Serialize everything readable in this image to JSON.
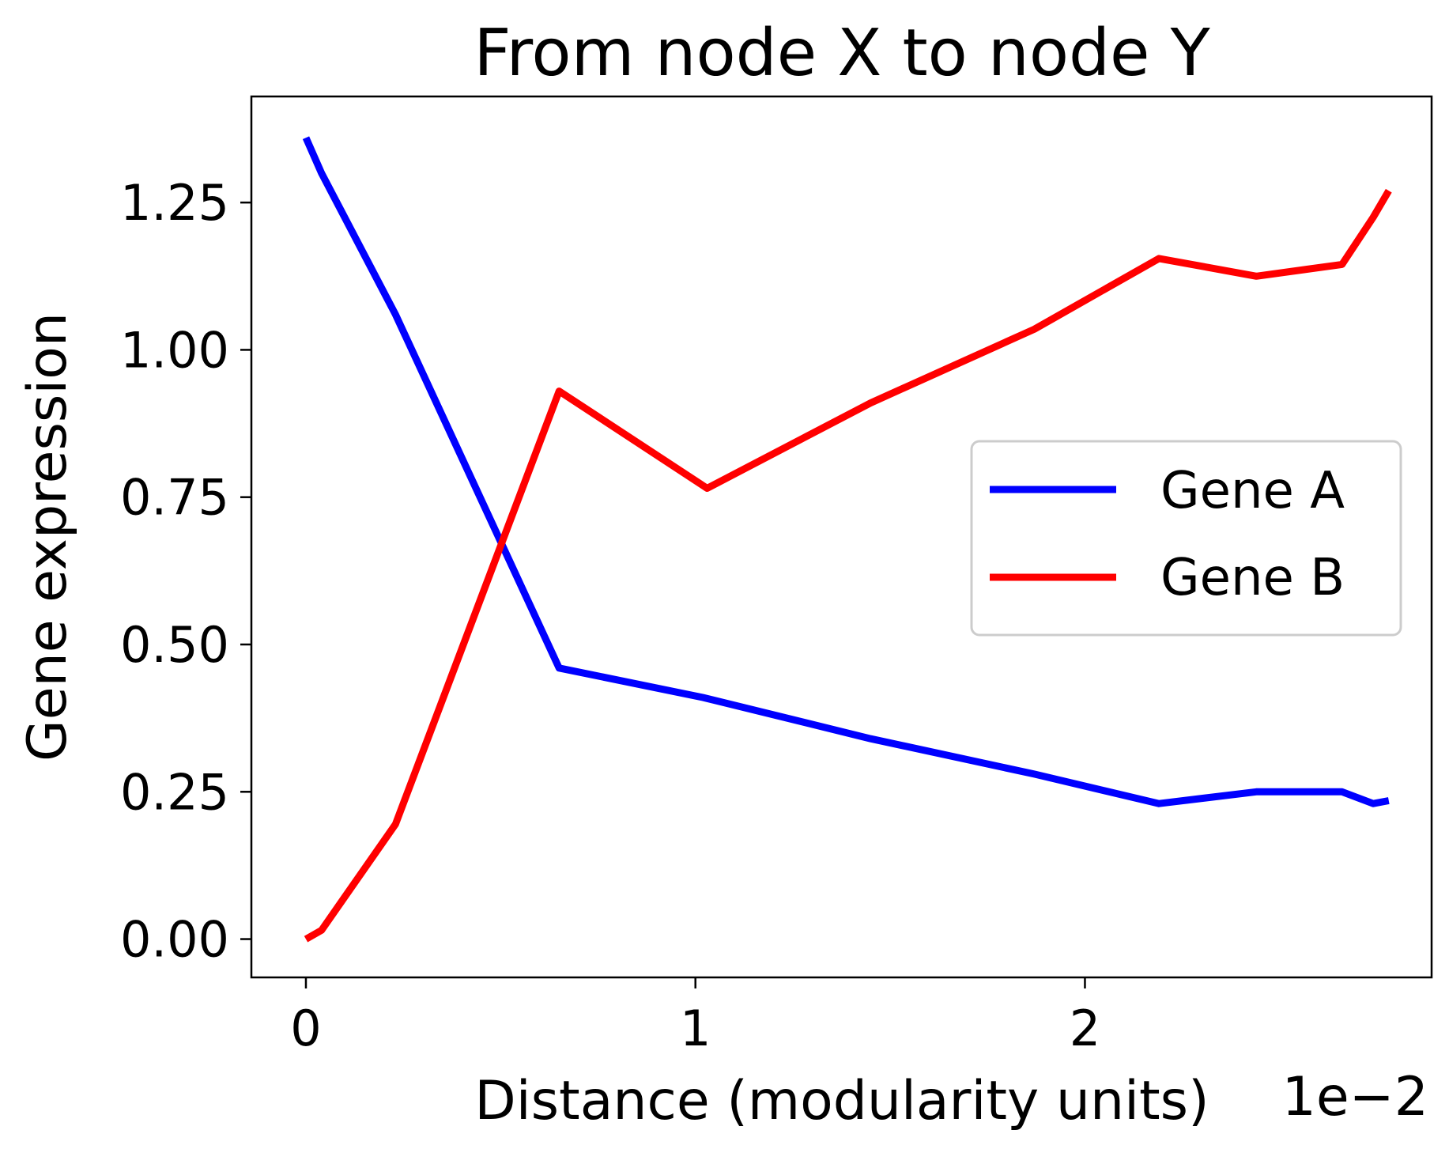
{
  "chart_data": {
    "type": "line",
    "title": "From node X to node Y",
    "xlabel": "Distance (modularity units)",
    "x_offset_label": "1e−2",
    "ylabel": "Gene expression",
    "xlim": [
      -0.0014,
      0.0289
    ],
    "ylim": [
      -0.065,
      1.43
    ],
    "xticks": [
      0,
      0.01,
      0.02
    ],
    "xtick_labels": [
      "0",
      "1",
      "2"
    ],
    "yticks": [
      0.0,
      0.25,
      0.5,
      0.75,
      1.0,
      1.25
    ],
    "ytick_labels": [
      "0.00",
      "0.25",
      "0.50",
      "0.75",
      "1.00",
      "1.25"
    ],
    "grid": false,
    "legend_position": "center-right",
    "series": [
      {
        "name": "Gene A",
        "color": "#0000ff",
        "x": [
          0.0,
          0.0004,
          0.0023,
          0.0065,
          0.0102,
          0.0145,
          0.0187,
          0.0219,
          0.0244,
          0.0266,
          0.0274,
          0.0278
        ],
        "y": [
          1.36,
          1.3,
          1.06,
          0.46,
          0.41,
          0.34,
          0.28,
          0.23,
          0.25,
          0.25,
          0.23,
          0.235
        ]
      },
      {
        "name": "Gene B",
        "color": "#ff0000",
        "x": [
          0.0,
          0.0004,
          0.0023,
          0.0065,
          0.0103,
          0.0145,
          0.0187,
          0.0219,
          0.0244,
          0.0266,
          0.0274,
          0.0278
        ],
        "y": [
          0.0,
          0.015,
          0.195,
          0.93,
          0.765,
          0.91,
          1.035,
          1.155,
          1.125,
          1.145,
          1.225,
          1.27
        ]
      }
    ]
  }
}
